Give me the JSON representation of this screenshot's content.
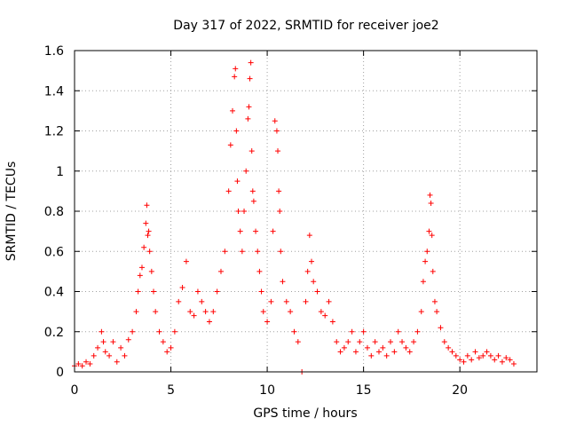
{
  "chart_data": {
    "type": "scatter",
    "title": "Day 317 of 2022, SRMTID for receiver joe2",
    "xlabel": "GPS time / hours",
    "ylabel": "SRMTID / TECUs",
    "xlim": [
      0,
      24
    ],
    "ylim": [
      0,
      1.6
    ],
    "xticks": [
      0,
      5,
      10,
      15,
      20
    ],
    "xtick_labels": [
      "0",
      "5",
      "10",
      "15",
      "20"
    ],
    "yticks": [
      0,
      0.2,
      0.4,
      0.6,
      0.8,
      1,
      1.2,
      1.4,
      1.6
    ],
    "ytick_labels": [
      "0",
      "0.2",
      "0.4",
      "0.6",
      "0.8",
      "1",
      "1.2",
      "1.4",
      "1.6"
    ],
    "grid": true,
    "marker": "+",
    "series_color": "#ff0000",
    "series": [
      {
        "name": "SRMTID",
        "x": [
          0.0,
          0.2,
          0.4,
          0.6,
          0.8,
          1.0,
          1.2,
          1.4,
          1.5,
          1.6,
          1.8,
          2.0,
          2.2,
          2.4,
          2.6,
          2.8,
          3.0,
          3.2,
          3.3,
          3.4,
          3.5,
          3.6,
          3.7,
          3.75,
          3.8,
          3.85,
          3.9,
          4.0,
          4.1,
          4.2,
          4.4,
          4.6,
          4.8,
          5.0,
          5.2,
          5.4,
          5.6,
          5.8,
          6.0,
          6.2,
          6.4,
          6.6,
          6.8,
          7.0,
          7.2,
          7.4,
          7.6,
          7.8,
          8.0,
          8.1,
          8.2,
          8.3,
          8.35,
          8.4,
          8.45,
          8.5,
          8.6,
          8.7,
          8.8,
          8.9,
          9.0,
          9.05,
          9.1,
          9.15,
          9.2,
          9.25,
          9.3,
          9.4,
          9.5,
          9.6,
          9.7,
          9.8,
          10.0,
          10.2,
          10.3,
          10.4,
          10.5,
          10.55,
          10.6,
          10.65,
          10.7,
          10.8,
          11.0,
          11.2,
          11.4,
          11.6,
          11.8,
          12.0,
          12.1,
          12.2,
          12.3,
          12.4,
          12.6,
          12.8,
          13.0,
          13.2,
          13.4,
          13.6,
          13.8,
          14.0,
          14.2,
          14.4,
          14.6,
          14.8,
          15.0,
          15.2,
          15.4,
          15.6,
          15.8,
          16.0,
          16.2,
          16.4,
          16.6,
          16.8,
          17.0,
          17.2,
          17.4,
          17.6,
          17.8,
          18.0,
          18.1,
          18.2,
          18.3,
          18.4,
          18.45,
          18.5,
          18.55,
          18.6,
          18.7,
          18.8,
          19.0,
          19.2,
          19.4,
          19.6,
          19.8,
          20.0,
          20.2,
          20.4,
          20.6,
          20.8,
          21.0,
          21.2,
          21.4,
          21.6,
          21.8,
          22.0,
          22.2,
          22.4,
          22.6,
          22.8
        ],
        "y": [
          0.03,
          0.04,
          0.03,
          0.05,
          0.04,
          0.08,
          0.12,
          0.2,
          0.15,
          0.1,
          0.08,
          0.15,
          0.05,
          0.12,
          0.08,
          0.16,
          0.2,
          0.3,
          0.4,
          0.48,
          0.52,
          0.62,
          0.74,
          0.83,
          0.68,
          0.7,
          0.6,
          0.5,
          0.4,
          0.3,
          0.2,
          0.15,
          0.1,
          0.12,
          0.2,
          0.35,
          0.42,
          0.55,
          0.3,
          0.28,
          0.4,
          0.35,
          0.3,
          0.25,
          0.3,
          0.4,
          0.5,
          0.6,
          0.9,
          1.13,
          1.3,
          1.47,
          1.51,
          1.2,
          0.95,
          0.8,
          0.7,
          0.6,
          0.8,
          1.0,
          1.26,
          1.32,
          1.46,
          1.54,
          1.1,
          0.9,
          0.85,
          0.7,
          0.6,
          0.5,
          0.4,
          0.3,
          0.25,
          0.35,
          0.7,
          1.25,
          1.2,
          1.1,
          0.9,
          0.8,
          0.6,
          0.45,
          0.35,
          0.3,
          0.2,
          0.15,
          0.0,
          0.35,
          0.5,
          0.68,
          0.55,
          0.45,
          0.4,
          0.3,
          0.28,
          0.35,
          0.25,
          0.15,
          0.1,
          0.12,
          0.15,
          0.2,
          0.1,
          0.15,
          0.2,
          0.12,
          0.08,
          0.15,
          0.1,
          0.12,
          0.08,
          0.15,
          0.1,
          0.2,
          0.15,
          0.12,
          0.1,
          0.15,
          0.2,
          0.3,
          0.45,
          0.55,
          0.6,
          0.7,
          0.88,
          0.84,
          0.68,
          0.5,
          0.35,
          0.3,
          0.22,
          0.15,
          0.12,
          0.1,
          0.08,
          0.06,
          0.05,
          0.08,
          0.06,
          0.1,
          0.07,
          0.08,
          0.1,
          0.08,
          0.06,
          0.08,
          0.05,
          0.07,
          0.06,
          0.04
        ]
      }
    ]
  }
}
